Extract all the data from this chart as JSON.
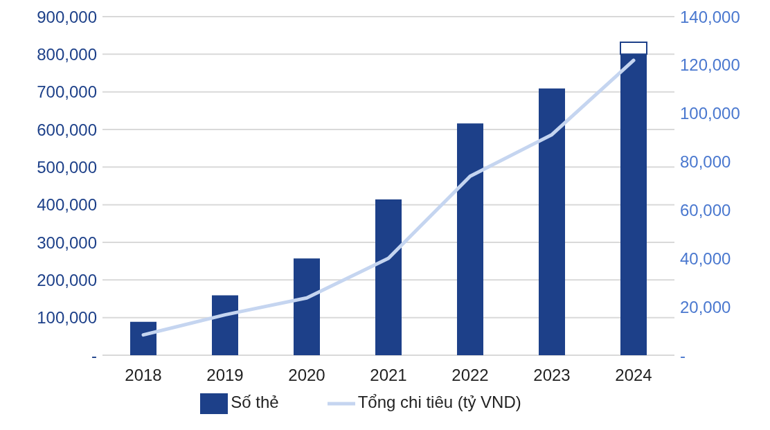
{
  "chart_data": {
    "type": "bar",
    "categories": [
      "2018",
      "2019",
      "2020",
      "2021",
      "2022",
      "2023",
      "2024"
    ],
    "stacked": true,
    "series": [
      {
        "name": "Số thẻ",
        "color": "#1d4089",
        "values": [
          89000,
          159000,
          257000,
          414000,
          616000,
          709000,
          800000
        ]
      },
      {
        "color": "#ffffff",
        "values": [
          null,
          null,
          null,
          null,
          null,
          null,
          32000
        ]
      },
      {
        "name": "Tổng chi tiêu (tỷ VND)",
        "type": "line",
        "axis": "y2",
        "color": "#c5d5f0",
        "values": [
          8400,
          16700,
          23700,
          40100,
          74000,
          91200,
          121900
        ]
      }
    ],
    "ylim": [
      0,
      900000
    ],
    "yticks": [
      {
        "value": 0,
        "label": "-"
      },
      {
        "value": 100000,
        "label": "100,000"
      },
      {
        "value": 200000,
        "label": "200,000"
      },
      {
        "value": 300000,
        "label": "300,000"
      },
      {
        "value": 400000,
        "label": "400,000"
      },
      {
        "value": 500000,
        "label": "500,000"
      },
      {
        "value": 600000,
        "label": "600,000"
      },
      {
        "value": 700000,
        "label": "700,000"
      },
      {
        "value": 800000,
        "label": "800,000"
      },
      {
        "value": 900000,
        "label": "900,000"
      }
    ],
    "y2lim": [
      0,
      140000
    ],
    "y2ticks": [
      {
        "value": 0,
        "label": "-"
      },
      {
        "value": 20000,
        "label": "20,000"
      },
      {
        "value": 40000,
        "label": "40,000"
      },
      {
        "value": 60000,
        "label": "60,000"
      },
      {
        "value": 80000,
        "label": "80,000"
      },
      {
        "value": 100000,
        "label": "100,000"
      },
      {
        "value": 120000,
        "label": "120,000"
      },
      {
        "value": 140000,
        "label": "140,000"
      }
    ],
    "grid": "y",
    "legend": "bottom"
  }
}
